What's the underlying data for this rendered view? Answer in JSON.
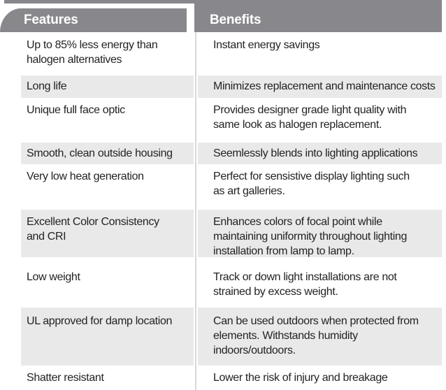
{
  "colors": {
    "header_bg": "#88888c",
    "shaded_row_bg": "#e9e9ea",
    "divider": "#d8d8da",
    "text": "#232323",
    "header_text": "#ffffff",
    "page_bg": "#ffffff"
  },
  "header": {
    "features": "Features",
    "benefits": "Benefits"
  },
  "rows": [
    {
      "feature": [
        "Up to 85% less energy than",
        "halogen alternatives"
      ],
      "benefit": [
        "Instant energy savings"
      ]
    },
    {
      "feature": [
        "Long life"
      ],
      "benefit": [
        "Minimizes replacement and maintenance costs"
      ]
    },
    {
      "feature": [
        "Unique full face optic"
      ],
      "benefit": [
        "Provides designer grade light quality with",
        "same look as halogen replacement."
      ]
    },
    {
      "feature": [
        "Smooth, clean outside housing"
      ],
      "benefit": [
        "Seemlessly blends into lighting applications"
      ]
    },
    {
      "feature": [
        "Very low heat generation"
      ],
      "benefit": [
        "Perfect for sensistive display lighting such",
        "as art galleries."
      ]
    },
    {
      "feature": [
        "Excellent Color Consistency",
        "and CRI"
      ],
      "benefit": [
        "Enhances colors of focal point while",
        "maintaining uniformity throughout lighting",
        "installation from lamp to lamp."
      ]
    },
    {
      "feature": [
        "Low weight"
      ],
      "benefit": [
        "Track or down light installations are not",
        "strained by excess weight."
      ]
    },
    {
      "feature": [
        "UL approved for damp location"
      ],
      "benefit": [
        "Can be used outdoors when protected from",
        "elements. Withstands humidity",
        "indoors/outdoors."
      ]
    },
    {
      "feature": [
        "Shatter resistant"
      ],
      "benefit": [
        "Lower the risk of injury and breakage"
      ]
    }
  ]
}
